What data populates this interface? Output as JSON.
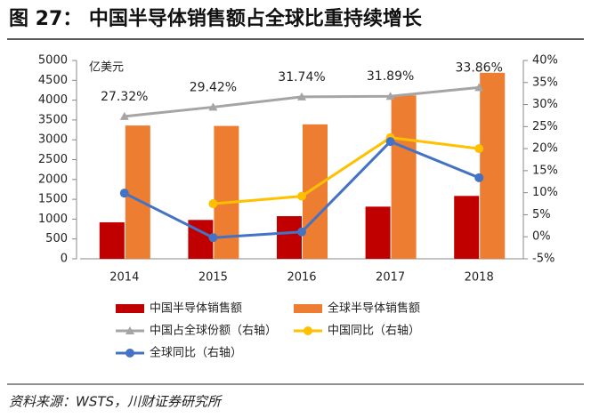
{
  "chart_data": {
    "type": "bar",
    "title": "图 27： 中国半导体销售额占全球比重持续增长",
    "y_unit": "亿美元",
    "source": "资料来源：WSTS，川财证券研究所",
    "categories": [
      "2014",
      "2015",
      "2016",
      "2017",
      "2018"
    ],
    "ylim": [
      0,
      5000
    ],
    "yticks": [
      0,
      500,
      1000,
      1500,
      2000,
      2500,
      3000,
      3500,
      4000,
      4500,
      5000
    ],
    "y2lim": [
      -5,
      40
    ],
    "y2ticks": [
      {
        "value": -5,
        "label": "-5%"
      },
      {
        "value": 0,
        "label": "0%"
      },
      {
        "value": 5,
        "label": "5%"
      },
      {
        "value": 10,
        "label": "10%"
      },
      {
        "value": 15,
        "label": "15%"
      },
      {
        "value": 20,
        "label": "20%"
      },
      {
        "value": 25,
        "label": "25%"
      },
      {
        "value": 30,
        "label": "30%"
      },
      {
        "value": 35,
        "label": "35%"
      },
      {
        "value": 40,
        "label": "40%"
      }
    ],
    "series": [
      {
        "name": "中国半导体销售额",
        "type": "bar",
        "color": "#c00000",
        "values": [
          920,
          980,
          1075,
          1315,
          1585
        ]
      },
      {
        "name": "全球半导体销售额",
        "type": "bar",
        "color": "#ed7d31",
        "values": [
          3360,
          3350,
          3390,
          4120,
          4690
        ]
      },
      {
        "name": "中国占全球份额（右轴）",
        "type": "line",
        "axis": "y2",
        "marker": "triangle",
        "color": "#a5a5a5",
        "values": [
          27.32,
          29.42,
          31.74,
          31.89,
          33.86
        ],
        "value_labels": [
          "27.32%",
          "29.42%",
          "31.74%",
          "31.89%",
          "33.86%"
        ]
      },
      {
        "name": "中国同比（右轴）",
        "type": "line",
        "axis": "y2",
        "marker": "circle",
        "color": "#ffc000",
        "values": [
          null,
          7.5,
          9.2,
          22.5,
          20.0
        ]
      },
      {
        "name": "全球同比（右轴）",
        "type": "line",
        "axis": "y2",
        "marker": "circle",
        "color": "#4472c4",
        "values": [
          9.9,
          -0.2,
          1.1,
          21.6,
          13.4
        ]
      }
    ]
  }
}
